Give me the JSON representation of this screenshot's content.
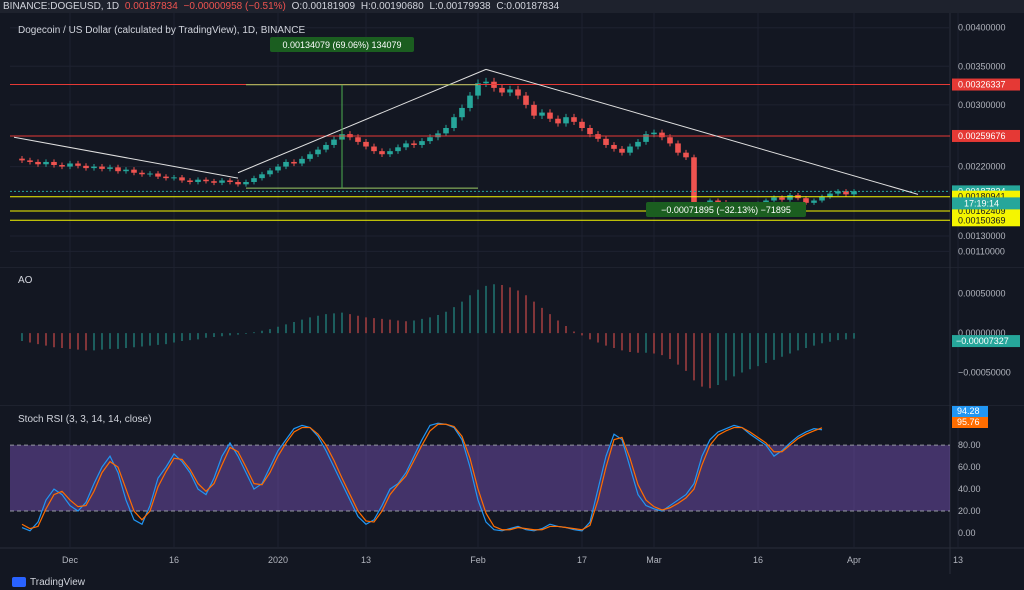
{
  "topbar": {
    "symbol": "BINANCE:DOGEUSD, 1D",
    "last": "0.00187834",
    "change": "−0.00000958 (−0.51%)",
    "open": "O:0.00181909",
    "high": "H:0.00190680",
    "low": "L:0.00179938",
    "close": "C:0.00187834"
  },
  "chart_data": [
    {
      "type": "candlestick",
      "title": "Dogecoin / US Dollar (calculated by TradingView), 1D, BINANCE",
      "x": {
        "tick_labels": [
          "Dec",
          "16",
          "2020",
          "13",
          "Feb",
          "17",
          "Mar",
          "16",
          "Apr",
          "13"
        ]
      },
      "y": {
        "ylim": [
          0.00095,
          0.0041
        ],
        "tick_labels": [
          "0.00400000",
          "0.00350000",
          "0.00300000",
          "0.00220000",
          "0.00130000",
          "0.00110000"
        ]
      },
      "close_series": [
        0.00228,
        0.00226,
        0.00223,
        0.00226,
        0.00222,
        0.0022,
        0.00224,
        0.00221,
        0.00218,
        0.0022,
        0.00217,
        0.00219,
        0.00214,
        0.00216,
        0.00212,
        0.0021,
        0.00211,
        0.00207,
        0.00205,
        0.00206,
        0.00202,
        0.002,
        0.00203,
        0.00201,
        0.00199,
        0.00202,
        0.002,
        0.00197,
        0.002,
        0.00205,
        0.0021,
        0.00215,
        0.0022,
        0.00226,
        0.00224,
        0.0023,
        0.00236,
        0.00242,
        0.00248,
        0.00255,
        0.00262,
        0.00258,
        0.00252,
        0.00246,
        0.0024,
        0.00236,
        0.0024,
        0.00245,
        0.0025,
        0.00248,
        0.00253,
        0.00258,
        0.00263,
        0.0027,
        0.00284,
        0.00296,
        0.00312,
        0.00328,
        0.0033,
        0.00322,
        0.00316,
        0.0032,
        0.00312,
        0.003,
        0.00286,
        0.0029,
        0.00282,
        0.00276,
        0.00284,
        0.00278,
        0.0027,
        0.00262,
        0.00256,
        0.00248,
        0.00243,
        0.00238,
        0.00246,
        0.00252,
        0.00262,
        0.00264,
        0.00258,
        0.0025,
        0.00238,
        0.00232,
        0.00158,
        0.00167,
        0.00176,
        0.00174,
        0.00168,
        0.00164,
        0.0017,
        0.00166,
        0.00172,
        0.00176,
        0.0018,
        0.00177,
        0.00183,
        0.00179,
        0.00173,
        0.00176,
        0.00181,
        0.00185,
        0.00188,
        0.00184,
        0.00188
      ],
      "horizontal_levels": [
        {
          "label": "0.00326337",
          "value": 0.00326337,
          "color": "#e53935"
        },
        {
          "label": "0.00259676",
          "value": 0.00259676,
          "color": "#e53935"
        },
        {
          "label": "0.00187834",
          "value": 0.00187834,
          "color": "#26a69a"
        },
        {
          "label": "0.00180941",
          "value": 0.00180941,
          "color": "#f5f500"
        },
        {
          "label": "0.00162409",
          "value": 0.00162409,
          "color": "#f5f500"
        },
        {
          "label": "0.00150369",
          "value": 0.00150369,
          "color": "#f5f500"
        }
      ],
      "countdown": "17:19:14",
      "annotations": [
        {
          "text": "0.00134079 (69.06%) 134079",
          "kind": "measure_up"
        },
        {
          "text": "−0.00071895 (−32.13%) −71895",
          "kind": "measure_down"
        }
      ]
    },
    {
      "type": "bar",
      "title": "AO",
      "y": {
        "ylim": [
          -0.00085,
          0.00075
        ],
        "tick_labels": [
          "0.00050000",
          "0.00000000",
          "−0.00050000"
        ]
      },
      "last_value_label": "−0.00007327",
      "values": [
        -0.0001,
        -0.00012,
        -0.00014,
        -0.00016,
        -0.00018,
        -0.00019,
        -0.0002,
        -0.00021,
        -0.00022,
        -0.00022,
        -0.00021,
        -0.0002,
        -0.0002,
        -0.00019,
        -0.00018,
        -0.00017,
        -0.00016,
        -0.00015,
        -0.00014,
        -0.00012,
        -0.0001,
        -9e-05,
        -8e-05,
        -6e-05,
        -5e-05,
        -4e-05,
        -3e-05,
        -2e-05,
        -1e-05,
        1e-05,
        3e-05,
        5e-05,
        8e-05,
        0.00011,
        0.00014,
        0.00017,
        0.0002,
        0.00022,
        0.00024,
        0.00025,
        0.00026,
        0.00024,
        0.00022,
        0.0002,
        0.00019,
        0.00018,
        0.00017,
        0.00016,
        0.00015,
        0.00016,
        0.00018,
        0.0002,
        0.00023,
        0.00027,
        0.00033,
        0.0004,
        0.00048,
        0.00055,
        0.0006,
        0.00062,
        0.00061,
        0.00058,
        0.00054,
        0.00048,
        0.0004,
        0.00032,
        0.00024,
        0.00016,
        9e-05,
        2e-05,
        -3e-05,
        -8e-05,
        -0.00012,
        -0.00016,
        -0.00019,
        -0.00022,
        -0.00024,
        -0.00025,
        -0.00025,
        -0.00026,
        -0.00028,
        -0.00033,
        -0.0004,
        -0.00048,
        -0.0006,
        -0.00068,
        -0.0007,
        -0.00066,
        -0.0006,
        -0.00055,
        -0.0005,
        -0.00046,
        -0.00042,
        -0.00038,
        -0.00034,
        -0.0003,
        -0.00026,
        -0.00022,
        -0.00019,
        -0.00016,
        -0.00013,
        -0.00011,
        -9e-05,
        -8e-05,
        -7e-05
      ]
    },
    {
      "type": "line",
      "title": "Stoch RSI (3, 3, 14, 14, close)",
      "y": {
        "ylim": [
          -10,
          112
        ],
        "tick_labels": [
          "80.00",
          "60.00",
          "40.00",
          "20.00",
          "0.00"
        ]
      },
      "bands": [
        20,
        80
      ],
      "series": [
        {
          "name": "K",
          "color": "#2196f3",
          "last_label": "94.28",
          "values": [
            5,
            2,
            10,
            30,
            40,
            35,
            25,
            20,
            28,
            45,
            60,
            70,
            55,
            30,
            12,
            8,
            25,
            50,
            60,
            72,
            65,
            55,
            40,
            35,
            50,
            70,
            82,
            70,
            55,
            40,
            45,
            60,
            75,
            85,
            95,
            98,
            96,
            88,
            75,
            60,
            45,
            30,
            15,
            8,
            12,
            25,
            40,
            45,
            55,
            70,
            85,
            98,
            100,
            99,
            96,
            85,
            60,
            30,
            10,
            3,
            2,
            4,
            6,
            3,
            2,
            4,
            8,
            6,
            5,
            3,
            2,
            10,
            40,
            70,
            90,
            85,
            60,
            35,
            25,
            22,
            20,
            25,
            30,
            35,
            45,
            70,
            85,
            92,
            95,
            98,
            96,
            90,
            85,
            80,
            70,
            75,
            82,
            88,
            92,
            95,
            94
          ]
        },
        {
          "name": "D",
          "color": "#ff6d00",
          "last_label": "95.76",
          "values": [
            8,
            4,
            6,
            22,
            35,
            38,
            30,
            24,
            25,
            38,
            55,
            65,
            60,
            40,
            20,
            12,
            20,
            42,
            56,
            68,
            67,
            58,
            45,
            38,
            45,
            62,
            78,
            74,
            60,
            45,
            44,
            55,
            70,
            82,
            92,
            96,
            96,
            90,
            80,
            66,
            50,
            35,
            20,
            11,
            10,
            20,
            35,
            44,
            52,
            66,
            80,
            93,
            99,
            99,
            97,
            88,
            68,
            40,
            18,
            6,
            3,
            3,
            5,
            4,
            3,
            3,
            6,
            6,
            5,
            4,
            3,
            7,
            30,
            60,
            85,
            87,
            68,
            44,
            30,
            24,
            21,
            23,
            27,
            32,
            40,
            62,
            80,
            89,
            93,
            96,
            96,
            92,
            87,
            82,
            74,
            74,
            80,
            86,
            90,
            93,
            95.8
          ]
        }
      ],
      "x_tick_labels": [
        "Dec",
        "16",
        "2020",
        "13",
        "Feb",
        "17",
        "Mar",
        "16",
        "Apr",
        "13"
      ]
    }
  ],
  "footer": {
    "brand": "TradingView"
  }
}
